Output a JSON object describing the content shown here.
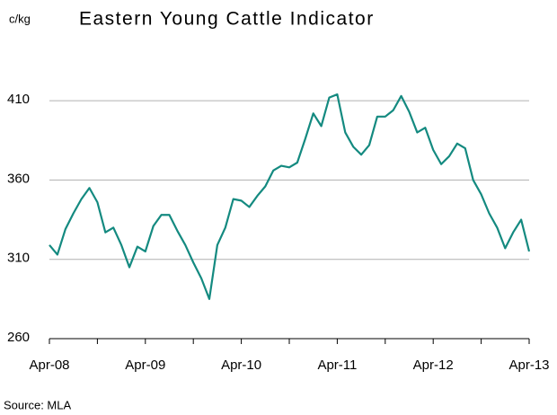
{
  "chart_data": {
    "type": "line",
    "title": "Eastern Young Cattle Indicator",
    "y_unit": "c/kg",
    "source": "Source: MLA",
    "x": [
      0,
      1,
      2,
      3,
      4,
      5,
      6,
      7,
      8,
      9,
      10,
      11,
      12,
      13,
      14,
      15,
      16,
      17,
      18,
      19,
      20,
      21,
      22,
      23,
      24,
      25,
      26,
      27,
      28,
      29,
      30,
      31,
      32,
      33,
      34,
      35,
      36,
      37,
      38,
      39,
      40,
      41,
      42,
      43,
      44,
      45,
      46,
      47,
      48,
      49,
      50,
      51,
      52,
      53,
      54,
      55,
      56,
      57,
      58,
      59,
      60
    ],
    "series": [
      {
        "name": "Eastern Young Cattle Indicator",
        "color": "#148a80",
        "values": [
          319,
          313,
          329,
          339,
          348,
          355,
          346,
          327,
          330,
          319,
          305,
          318,
          315,
          331,
          338,
          338,
          328,
          319,
          308,
          298,
          285,
          319,
          330,
          348,
          347,
          343,
          350,
          356,
          366,
          369,
          368,
          371,
          386,
          402,
          394,
          412,
          414,
          390,
          381,
          376,
          382,
          400,
          400,
          404,
          413,
          403,
          390,
          393,
          379,
          370,
          375,
          383,
          380,
          360,
          351,
          339,
          330,
          317,
          327,
          335,
          315
        ]
      }
    ],
    "xlim": [
      0,
      60
    ],
    "xticks": [
      {
        "value": 0,
        "label": "Apr-08"
      },
      {
        "value": 12,
        "label": "Apr-09"
      },
      {
        "value": 24,
        "label": "Apr-10"
      },
      {
        "value": 36,
        "label": "Apr-11"
      },
      {
        "value": 48,
        "label": "Apr-12"
      },
      {
        "value": 60,
        "label": "Apr-13"
      }
    ],
    "x_minor_ticks": [
      6,
      18,
      30,
      42,
      54
    ],
    "ylim": [
      260,
      435
    ],
    "yticks": [
      260,
      310,
      360,
      410
    ],
    "grid": true
  }
}
